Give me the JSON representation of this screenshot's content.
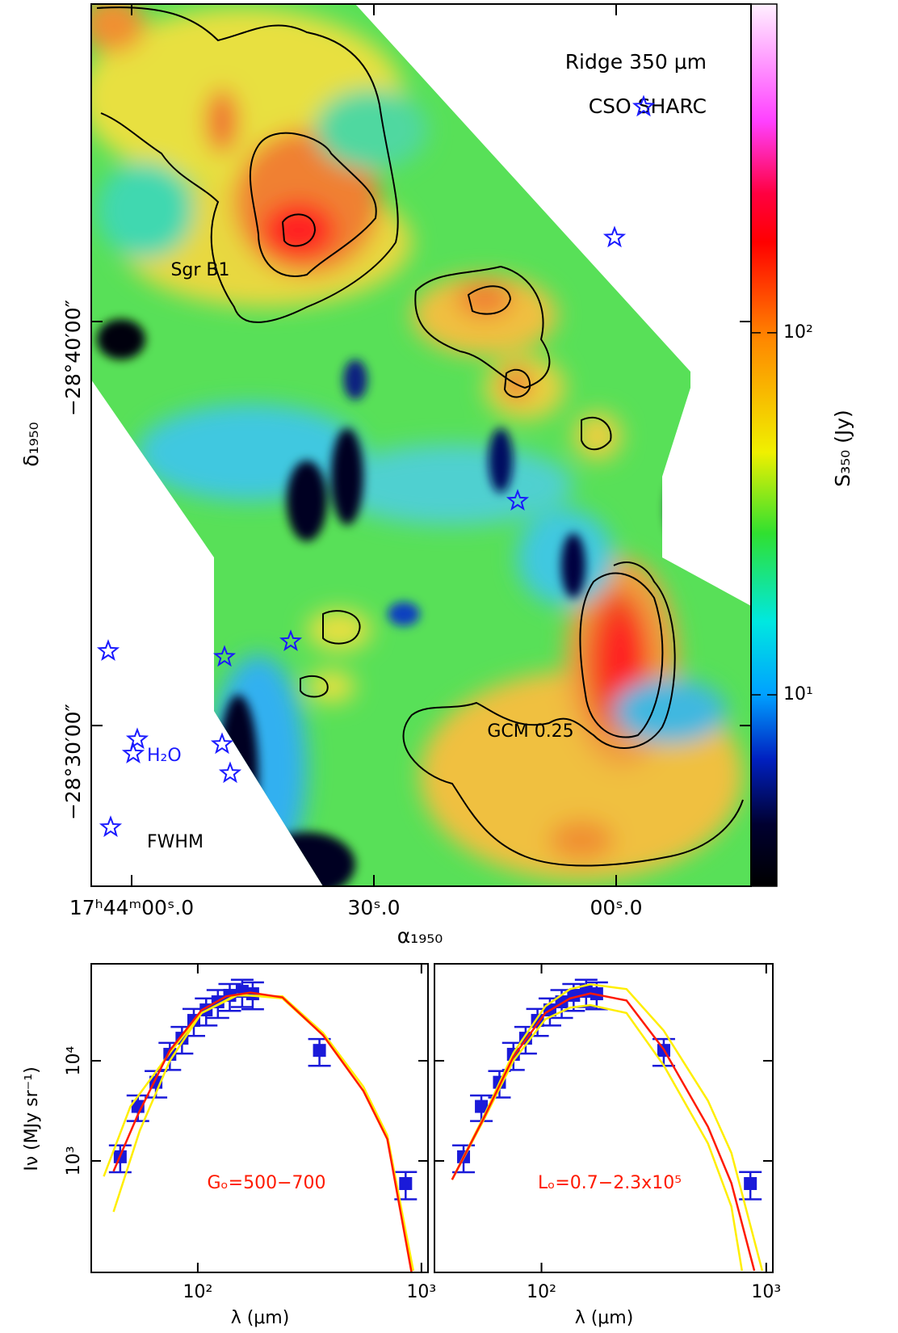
{
  "chart_data": [
    {
      "type": "map",
      "xlabel": "α₁₉₅₀",
      "ylabel": "δ₁₉₅₀",
      "xlim": [
        65,
        -16.7
      ],
      "ylim": [
        -28.4337,
        -28.7977
      ],
      "xticks": [
        {
          "value": 60,
          "label": "17ʰ44ᵐ00ˢ.0"
        },
        {
          "value": 30,
          "label": "30ˢ.0"
        },
        {
          "value": 0,
          "label": "00ˢ.0"
        }
      ],
      "yticks": [
        {
          "value": -28.5,
          "label": "−28°30′00″"
        },
        {
          "value": -28.6667,
          "label": "−28°40′00″"
        }
      ],
      "annotations": [
        "Ridge 350 μm",
        "CSO SHARC",
        "Sgr B1",
        "GCM 0.25",
        "FWHM"
      ],
      "series": [
        {
          "name": "H₂O",
          "color": "#1a1aff",
          "marker": "star",
          "x": [
            62.6,
            47.8,
            59.3,
            48.8,
            62.9,
            48.5,
            40.3,
            12.2,
            0.2,
            -3.4
          ],
          "values": [
            -28.458,
            -28.4803,
            -28.4943,
            -28.4923,
            -28.5307,
            -28.5283,
            -28.5347,
            -28.5927,
            -28.7013,
            -28.7553
          ]
        }
      ],
      "colorbar": {
        "label": "S₃₅₀ (Jy)",
        "log": true,
        "lim": [
          2.96,
          809
        ],
        "ticks": [
          {
            "value": 10,
            "label": "10¹"
          },
          {
            "value": 100,
            "label": "10²"
          }
        ]
      }
    },
    {
      "type": "sed",
      "xlabel": "λ (μm)",
      "ylabel": "Iν (MJy sr⁻¹)",
      "annotation": "Gₒ=500−700",
      "xlog": true,
      "ylog": true,
      "xlim": [
        33.4,
        1070
      ],
      "ylim": [
        77,
        93000
      ],
      "xticks": [
        {
          "value": 100,
          "label": "10²"
        },
        {
          "value": 1000,
          "label": "10³"
        }
      ],
      "yticks": [
        {
          "value": 1000,
          "label": "10³"
        },
        {
          "value": 10000,
          "label": "10⁴"
        }
      ],
      "series": [
        {
          "color": "#1a1ad9",
          "marker": "square",
          "x": [
            45,
            54,
            65,
            75,
            85,
            96,
            109,
            123,
            139,
            158,
            176,
            350,
            850
          ],
          "values": [
            1100,
            3500,
            6100,
            11600,
            16800,
            25300,
            32200,
            38800,
            45000,
            49400,
            46700,
            12700,
            594
          ],
          "errors": [
            330,
            1000,
            1800,
            3500,
            5000,
            7600,
            9700,
            12000,
            13500,
            15000,
            14000,
            3800,
            180
          ]
        },
        {
          "color": "#ffee00",
          "x": [
            38,
            50,
            75,
            104,
            150,
            239,
            363,
            550,
            704,
            910
          ],
          "values": [
            700,
            3500,
            12000,
            30000,
            46000,
            42000,
            18000,
            5000,
            1650,
            80
          ]
        },
        {
          "color": "#ffee00",
          "x": [
            42,
            55,
            75,
            104,
            150,
            239,
            363,
            550,
            704,
            920
          ],
          "values": [
            310,
            2000,
            10000,
            30000,
            45000,
            44000,
            19000,
            5500,
            1800,
            80
          ]
        },
        {
          "color": "#ff1a00",
          "x": [
            42,
            54,
            75,
            104,
            134,
            172,
            239,
            363,
            550,
            704,
            903
          ],
          "values": [
            790,
            2900,
            12700,
            32000,
            44000,
            48000,
            43000,
            18000,
            5000,
            1650,
            77
          ]
        }
      ]
    },
    {
      "type": "sed",
      "xlabel": "λ (μm)",
      "annotation": "Lₒ=0.7−2.3x10⁵",
      "xlog": true,
      "ylog": true,
      "xlim": [
        33.4,
        1070
      ],
      "ylim": [
        77,
        93000
      ],
      "xticks": [
        {
          "value": 100,
          "label": "10²"
        },
        {
          "value": 1000,
          "label": "10³"
        }
      ],
      "yticks": [
        1000,
        10000
      ],
      "series": [
        {
          "color": "#1a1ad9",
          "marker": "square",
          "x": [
            45,
            54,
            65,
            75,
            85,
            96,
            109,
            123,
            139,
            158,
            176,
            350,
            850
          ],
          "values": [
            1100,
            3500,
            6100,
            11600,
            16800,
            25300,
            32200,
            38800,
            45000,
            49400,
            46700,
            12700,
            594
          ],
          "errors": [
            330,
            1000,
            1800,
            3500,
            5000,
            7600,
            9700,
            12000,
            13500,
            15000,
            14000,
            3800,
            180
          ]
        },
        {
          "color": "#ffee00",
          "x": [
            40,
            55,
            75,
            104,
            134,
            165,
            239,
            350,
            550,
            700,
            960
          ],
          "values": [
            650,
            2700,
            12000,
            35000,
            52000,
            58000,
            52000,
            20000,
            4000,
            1200,
            80
          ]
        },
        {
          "color": "#ffee00",
          "x": [
            40,
            55,
            75,
            104,
            134,
            165,
            239,
            350,
            550,
            700,
            780
          ],
          "values": [
            650,
            2500,
            10000,
            26000,
            34000,
            36000,
            30000,
            9000,
            1500,
            350,
            80
          ]
        },
        {
          "color": "#ff1a00",
          "x": [
            40,
            55,
            75,
            104,
            134,
            165,
            239,
            350,
            550,
            700,
            885
          ],
          "values": [
            650,
            2600,
            11000,
            30000,
            42000,
            47000,
            40000,
            13000,
            2200,
            600,
            80
          ]
        }
      ]
    }
  ]
}
